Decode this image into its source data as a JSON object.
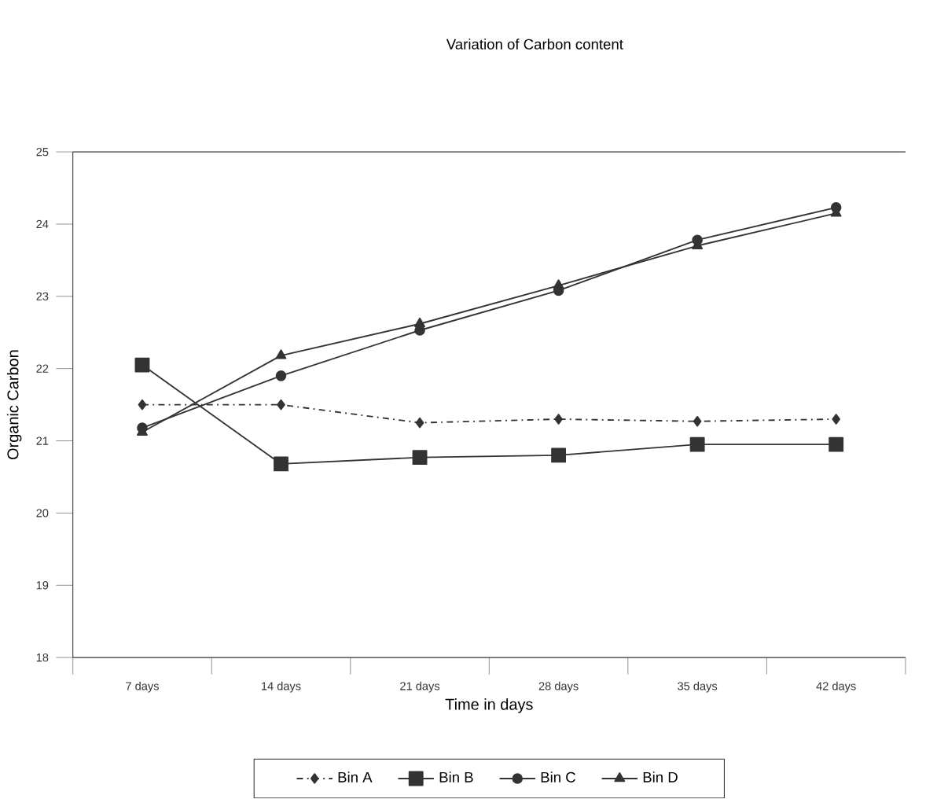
{
  "chart_data": {
    "type": "line",
    "title": "Variation of Carbon content",
    "xlabel": "Time in days",
    "ylabel": "Organic Carbon",
    "categories": [
      "7 days",
      "14 days",
      "21 days",
      "28 days",
      "35 days",
      "42 days"
    ],
    "series": [
      {
        "name": "Bin A",
        "color": "#333333",
        "marker": "diamond",
        "line_style": "dashed",
        "values": [
          21.5,
          21.5,
          21.25,
          21.3,
          21.27,
          21.3
        ]
      },
      {
        "name": "Bin  B",
        "color": "#333333",
        "marker": "square",
        "line_style": "solid",
        "values": [
          22.05,
          20.68,
          20.77,
          20.8,
          20.95,
          20.95
        ]
      },
      {
        "name": "Bin C",
        "color": "#333333",
        "marker": "circle",
        "line_style": "solid",
        "values": [
          21.18,
          21.9,
          22.53,
          23.08,
          23.78,
          24.23
        ]
      },
      {
        "name": "Bin D",
        "color": "#333333",
        "marker": "triangle",
        "line_style": "solid",
        "values": [
          21.12,
          22.18,
          22.62,
          23.15,
          23.7,
          24.15
        ]
      }
    ],
    "ylim": [
      18,
      25
    ],
    "yticks": [
      18,
      19,
      20,
      21,
      22,
      23,
      24,
      25
    ],
    "grid": false,
    "legend": "bottom"
  }
}
